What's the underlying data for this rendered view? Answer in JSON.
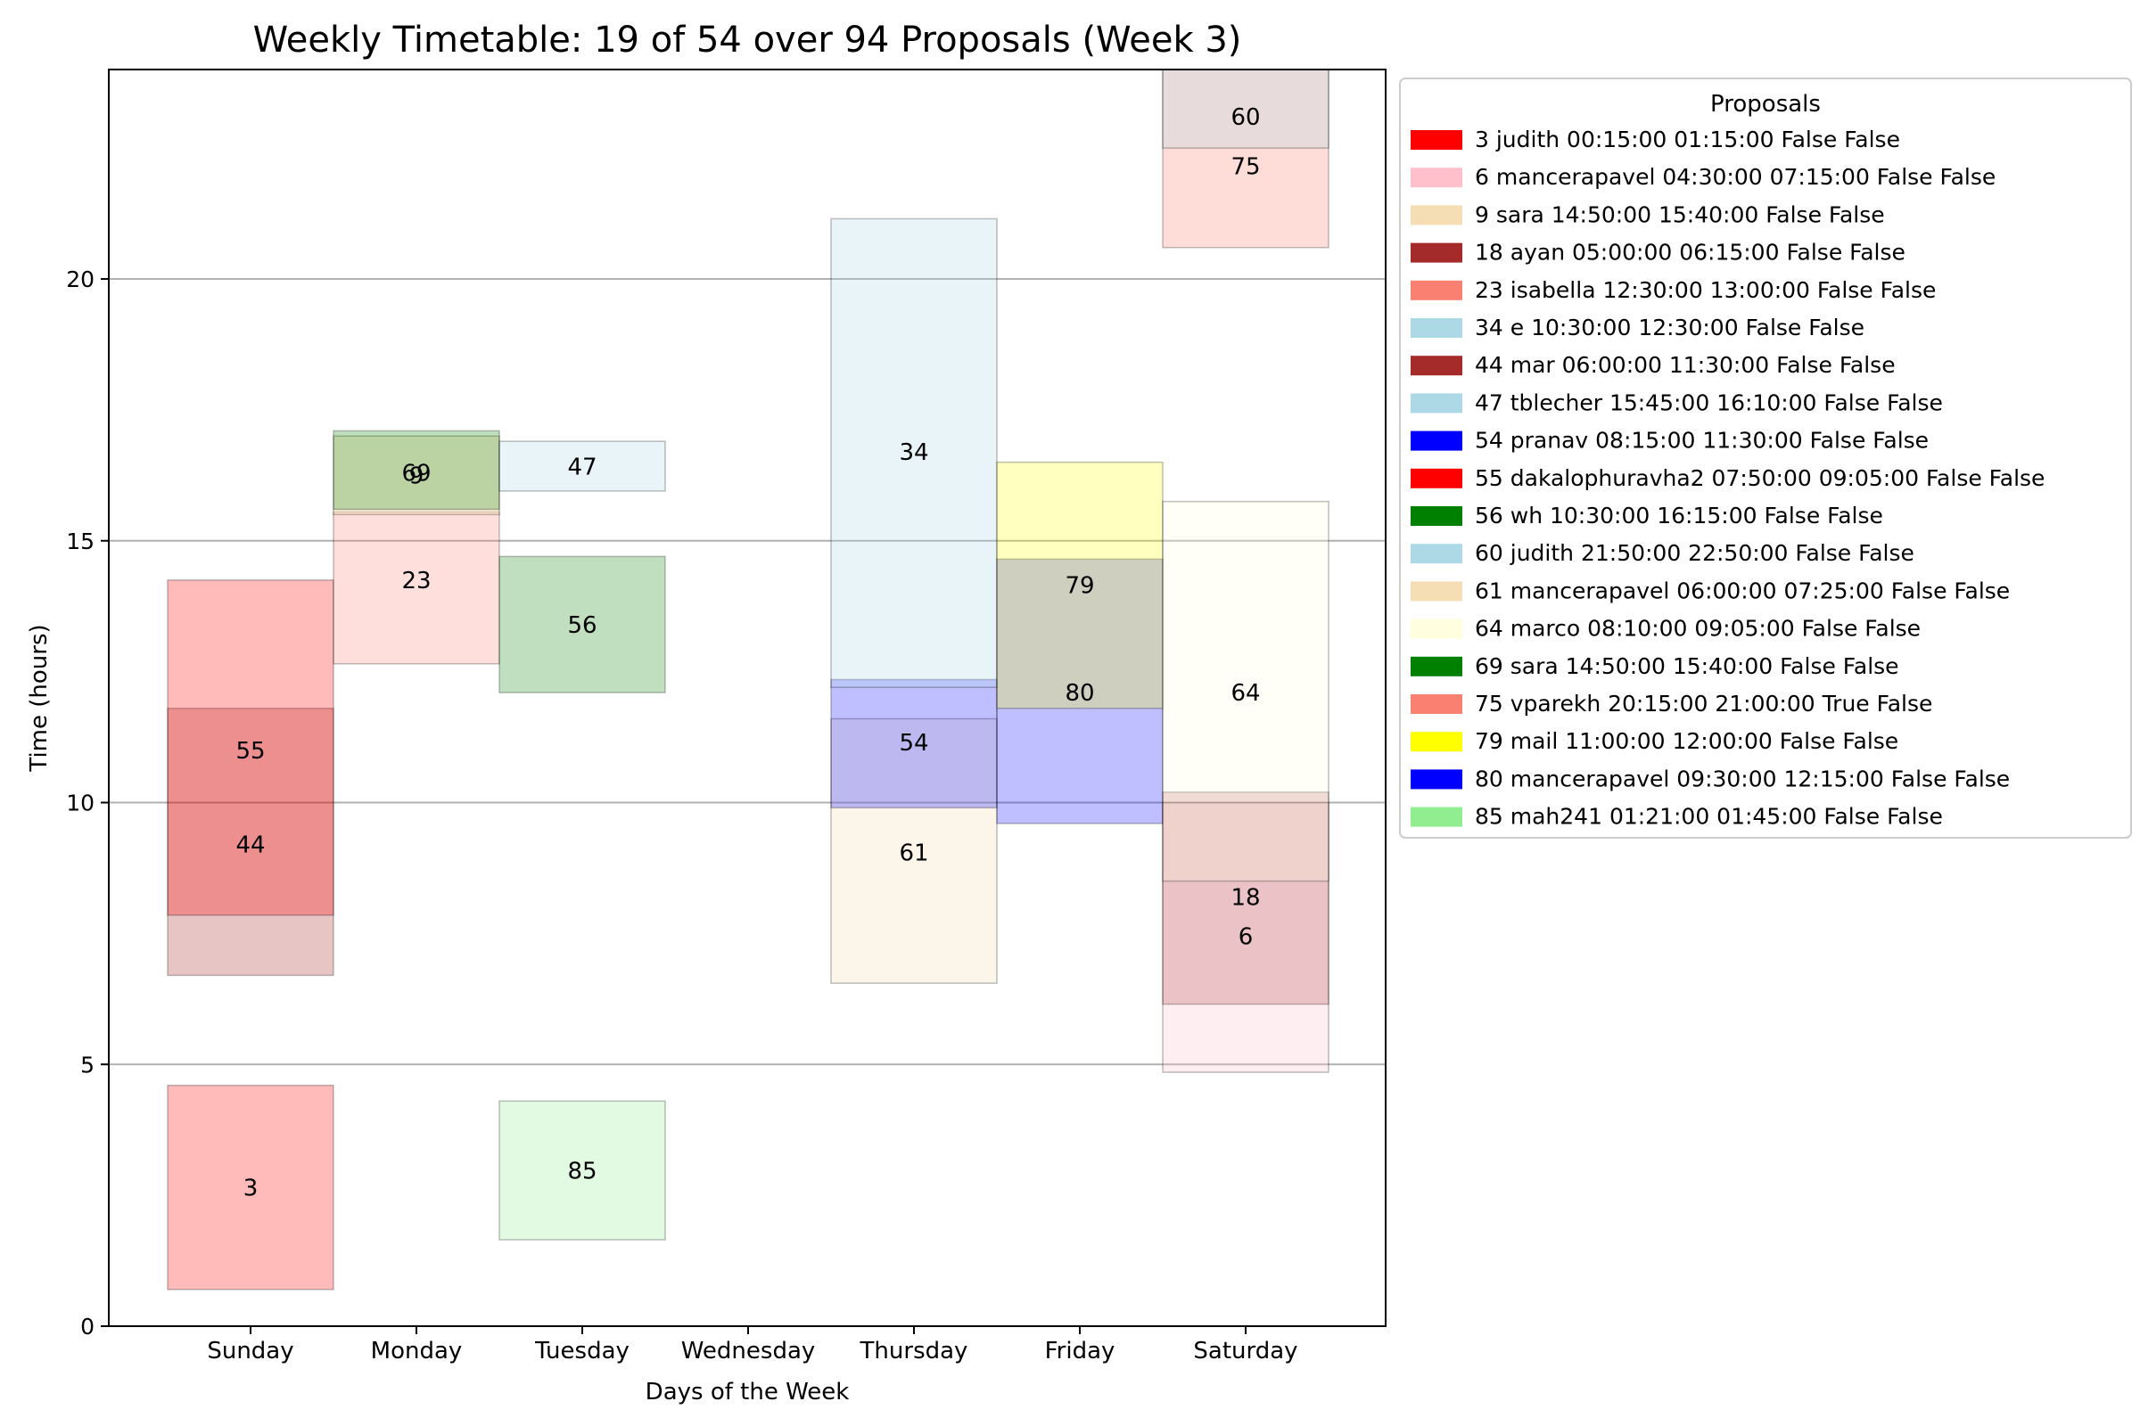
{
  "chart_data": {
    "type": "bar",
    "title": "Weekly Timetable: 19 of 54 over 94 Proposals (Week 3)",
    "xlabel": "Days of the Week",
    "ylabel": "Time (hours)",
    "categories": [
      "Sunday",
      "Monday",
      "Tuesday",
      "Wednesday",
      "Thursday",
      "Friday",
      "Saturday"
    ],
    "ylim": [
      0,
      24
    ],
    "yticks": [
      0,
      5,
      10,
      15,
      20
    ],
    "grid": "horizontal",
    "legend": {
      "title": "Proposals",
      "placement": "outside-right",
      "entries": [
        {
          "label": "3 judith 00:15:00 01:15:00 False False",
          "color": "#ff0000"
        },
        {
          "label": "6 mancerapavel 04:30:00 07:15:00 False False",
          "color": "#ffc0cb"
        },
        {
          "label": "9 sara 14:50:00 15:40:00 False False",
          "color": "#f5deb3"
        },
        {
          "label": "18 ayan 05:00:00 06:15:00 False False",
          "color": "#a52a2a"
        },
        {
          "label": "23 isabella 12:30:00 13:00:00 False False",
          "color": "#fa8072"
        },
        {
          "label": "34 e 10:30:00 12:30:00 False False",
          "color": "#add8e6"
        },
        {
          "label": "44 mar 06:00:00 11:30:00 False False",
          "color": "#a52a2a"
        },
        {
          "label": "47 tblecher 15:45:00 16:10:00 False False",
          "color": "#add8e6"
        },
        {
          "label": "54 pranav 08:15:00 11:30:00 False False",
          "color": "#0000ff"
        },
        {
          "label": "55 dakalophuravha2 07:50:00 09:05:00 False False",
          "color": "#ff0000"
        },
        {
          "label": "56 wh 10:30:00 16:15:00 False False",
          "color": "#008000"
        },
        {
          "label": "60 judith 21:50:00 22:50:00 False False",
          "color": "#add8e6"
        },
        {
          "label": "61 mancerapavel 06:00:00 07:25:00 False False",
          "color": "#f5deb3"
        },
        {
          "label": "64 marco 08:10:00 09:05:00 False False",
          "color": "#ffffe0"
        },
        {
          "label": "69 sara 14:50:00 15:40:00 False False",
          "color": "#008000"
        },
        {
          "label": "75 vparekh 20:15:00 21:00:00 True False",
          "color": "#fa8072"
        },
        {
          "label": "79 mail 11:00:00 12:00:00 False False",
          "color": "#ffff00"
        },
        {
          "label": "80 mancerapavel 09:30:00 12:15:00 False False",
          "color": "#0000ff"
        },
        {
          "label": "85 mah241 01:21:00 01:45:00 False False",
          "color": "#90ee90"
        }
      ]
    },
    "bars": [
      {
        "id": "3",
        "day": "Sunday",
        "start": 0.7,
        "end": 4.6,
        "label_y": 2.65,
        "color": "#ff0000",
        "alpha": 0.27
      },
      {
        "id": "44",
        "day": "Sunday",
        "start": 6.7,
        "end": 11.8,
        "label_y": 9.2,
        "color": "#a52a2a",
        "alpha": 0.27
      },
      {
        "id": "55",
        "day": "Sunday",
        "start": 7.85,
        "end": 14.25,
        "label_y": 11.0,
        "color": "#ff0000",
        "alpha": 0.27
      },
      {
        "id": "23",
        "day": "Monday",
        "start": 12.65,
        "end": 15.55,
        "label_y": 14.25,
        "color": "#fa8072",
        "alpha": 0.25
      },
      {
        "id": "9",
        "day": "Monday",
        "start": 15.5,
        "end": 17.0,
        "label_y": 16.25,
        "color": "#f5deb3",
        "alpha": 0.5
      },
      {
        "id": "69",
        "day": "Monday",
        "start": 15.6,
        "end": 17.1,
        "label_y": 16.3,
        "color": "#008000",
        "alpha": 0.25
      },
      {
        "id": "85",
        "day": "Tuesday",
        "start": 1.65,
        "end": 4.3,
        "label_y": 2.97,
        "color": "#90ee90",
        "alpha": 0.27
      },
      {
        "id": "56",
        "day": "Tuesday",
        "start": 12.1,
        "end": 14.7,
        "label_y": 13.4,
        "color": "#008000",
        "alpha": 0.25
      },
      {
        "id": "47",
        "day": "Tuesday",
        "start": 15.95,
        "end": 16.9,
        "label_y": 16.42,
        "color": "#add8e6",
        "alpha": 0.27
      },
      {
        "id": "61",
        "day": "Thursday",
        "start": 6.55,
        "end": 11.6,
        "label_y": 9.05,
        "color": "#f5deb3",
        "alpha": 0.27
      },
      {
        "id": "54",
        "day": "Thursday",
        "start": 9.9,
        "end": 12.35,
        "label_y": 11.15,
        "color": "#0000ff",
        "alpha": 0.25
      },
      {
        "id": "34",
        "day": "Thursday",
        "start": 12.2,
        "end": 21.15,
        "label_y": 16.7,
        "color": "#add8e6",
        "alpha": 0.27
      },
      {
        "id": "80",
        "day": "Friday",
        "start": 9.6,
        "end": 14.65,
        "label_y": 12.1,
        "color": "#0000ff",
        "alpha": 0.25
      },
      {
        "id": "79",
        "day": "Friday",
        "start": 11.8,
        "end": 16.5,
        "label_y": 14.15,
        "color": "#ffff00",
        "alpha": 0.25
      },
      {
        "id": "6",
        "day": "Saturday",
        "start": 4.85,
        "end": 10.0,
        "label_y": 7.45,
        "color": "#ffc0cb",
        "alpha": 0.27
      },
      {
        "id": "18",
        "day": "Saturday",
        "start": 6.15,
        "end": 10.2,
        "label_y": 8.2,
        "color": "#a52a2a",
        "alpha": 0.22
      },
      {
        "id": "64",
        "day": "Saturday",
        "start": 8.5,
        "end": 15.75,
        "label_y": 12.1,
        "color": "#ffffe0",
        "alpha": 0.27
      },
      {
        "id": "75",
        "day": "Saturday",
        "start": 20.6,
        "end": 24.0,
        "label_y": 22.15,
        "color": "#fa8072",
        "alpha": 0.27
      },
      {
        "id": "60",
        "day": "Saturday",
        "start": 22.5,
        "end": 24.0,
        "label_y": 23.1,
        "color": "#add8e6",
        "alpha": 0.27
      }
    ]
  }
}
